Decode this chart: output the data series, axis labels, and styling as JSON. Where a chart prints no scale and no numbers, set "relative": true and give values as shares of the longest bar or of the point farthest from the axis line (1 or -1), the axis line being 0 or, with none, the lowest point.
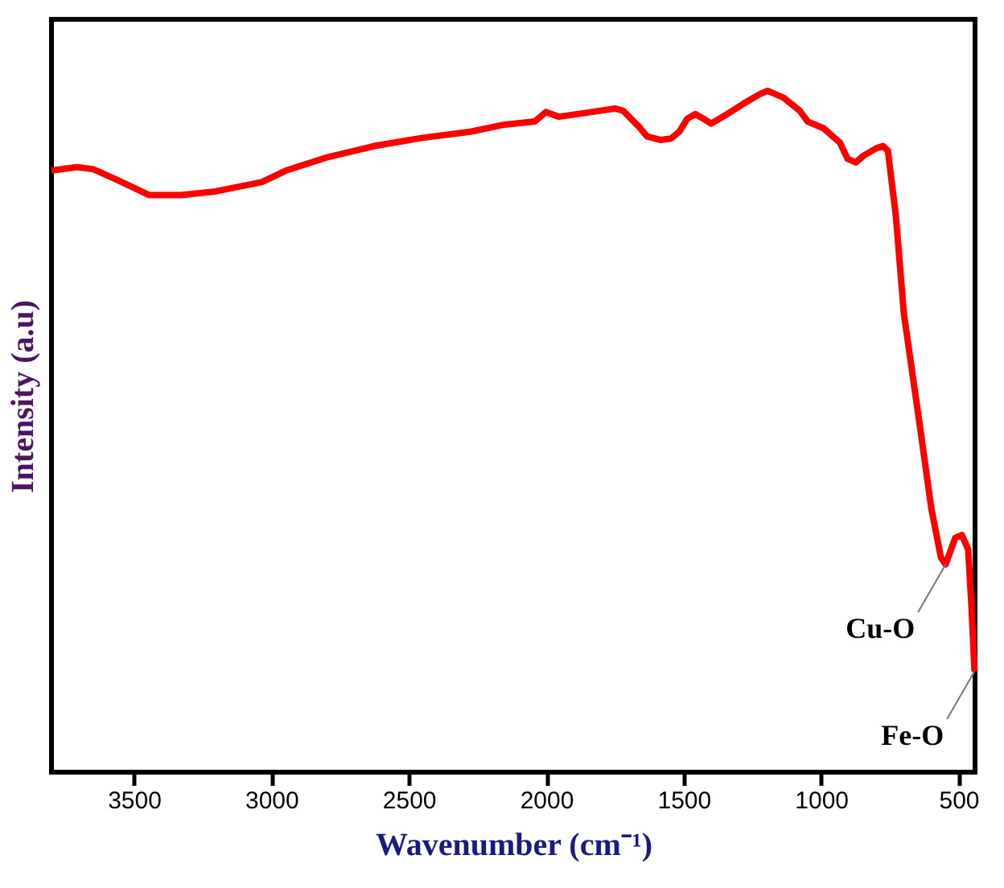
{
  "chart_data": {
    "type": "line",
    "relative": true,
    "xlabel": "Wavenumber (cm⁻¹)",
    "ylabel": "Intensity (a.u)",
    "xlim": [
      3800,
      440
    ],
    "xticks": [
      3500,
      3000,
      2500,
      2000,
      1500,
      1000,
      500
    ],
    "tick_labels": "x",
    "grid": false,
    "marker": "none",
    "line_style": "solid",
    "x": [
      3800,
      3707,
      3648,
      3560,
      3444,
      3327,
      3210,
      3035,
      2947,
      2801,
      2626,
      2451,
      2276,
      2159,
      2042,
      2001,
      1954,
      1867,
      1750,
      1721,
      1662,
      1633,
      1586,
      1546,
      1516,
      1487,
      1458,
      1428,
      1400,
      1341,
      1283,
      1224,
      1195,
      1166,
      1137,
      1078,
      1049,
      991,
      932,
      903,
      874,
      845,
      798,
      775,
      757,
      728,
      699,
      640,
      599,
      564,
      547,
      512,
      488,
      465,
      453,
      442
    ],
    "series": [
      {
        "color": "#ff0000",
        "values": [
          0.883,
          0.888,
          0.885,
          0.869,
          0.847,
          0.847,
          0.852,
          0.866,
          0.883,
          0.902,
          0.919,
          0.931,
          0.94,
          0.95,
          0.955,
          0.969,
          0.962,
          0.967,
          0.974,
          0.971,
          0.947,
          0.933,
          0.928,
          0.93,
          0.94,
          0.959,
          0.966,
          0.959,
          0.952,
          0.966,
          0.981,
          0.995,
          1.0,
          0.995,
          0.99,
          0.971,
          0.955,
          0.945,
          0.924,
          0.9,
          0.895,
          0.905,
          0.916,
          0.919,
          0.912,
          0.816,
          0.673,
          0.506,
          0.387,
          0.315,
          0.305,
          0.344,
          0.348,
          0.327,
          0.243,
          0.148
        ]
      }
    ],
    "annotations": [
      {
        "text": "Cu-O",
        "x": 547,
        "y": 0.305
      },
      {
        "text": "Fe-O",
        "x": 442,
        "y": 0.148
      }
    ]
  }
}
